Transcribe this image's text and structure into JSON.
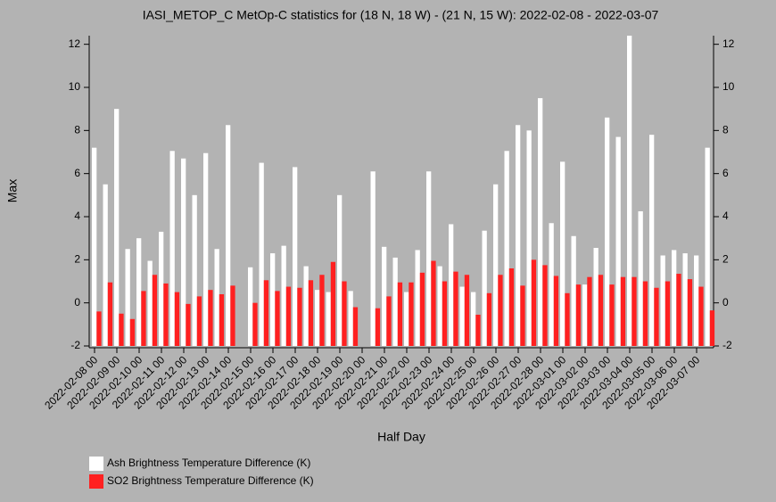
{
  "chart_data": {
    "type": "bar",
    "title": "IASI_METOP_C MetOp-C statistics for (18 N, 18 W) - (21 N, 15 W): 2022-02-08 - 2022-03-07",
    "x_label": "Half Day",
    "y_label": "Max",
    "categories": [
      "2022-02-08 00",
      null,
      "2022-02-09 00",
      null,
      "2022-02-10 00",
      null,
      "2022-02-11 00",
      null,
      "2022-02-12 00",
      null,
      "2022-02-13 00",
      null,
      "2022-02-14 00",
      null,
      "2022-02-15 00",
      null,
      "2022-02-16 00",
      null,
      "2022-02-17 00",
      null,
      "2022-02-18 00",
      null,
      "2022-02-19 00",
      null,
      "2022-02-20 00",
      null,
      "2022-02-21 00",
      null,
      "2022-02-22 00",
      null,
      "2022-02-23 00",
      null,
      "2022-02-24 00",
      null,
      "2022-02-25 00",
      null,
      "2022-02-26 00",
      null,
      "2022-02-27 00",
      null,
      "2022-02-28 00",
      null,
      "2022-03-01 00",
      null,
      "2022-03-02 00",
      null,
      "2022-03-03 00",
      null,
      "2022-03-04 00",
      null,
      "2022-03-05 00",
      null,
      "2022-03-06 00",
      null,
      "2022-03-07 00",
      null
    ],
    "series": [
      {
        "name": "Ash Brightness Temperature Difference (K)",
        "color": "#ffffff",
        "values": [
          7.2,
          5.5,
          9.0,
          2.5,
          3.0,
          1.95,
          3.3,
          7.05,
          6.7,
          5.0,
          6.95,
          2.5,
          8.25,
          null,
          1.65,
          6.5,
          2.3,
          2.65,
          6.3,
          1.7,
          0.6,
          0.5,
          5.0,
          0.55,
          null,
          6.1,
          2.6,
          2.1,
          0.5,
          2.45,
          6.1,
          1.7,
          3.65,
          0.75,
          0.5,
          3.35,
          5.5,
          7.05,
          8.25,
          8.0,
          9.5,
          3.7,
          6.55,
          3.1,
          0.85,
          2.55,
          8.6,
          7.7,
          12.4,
          4.25,
          7.8,
          2.2,
          2.45,
          2.3,
          2.2,
          7.2
        ]
      },
      {
        "name": "SO2 Brightness Temperature Difference (K)",
        "color": "#ff2020",
        "values": [
          -0.4,
          0.95,
          -0.5,
          -0.75,
          0.55,
          1.3,
          0.9,
          0.5,
          -0.05,
          0.3,
          0.6,
          0.4,
          0.8,
          null,
          0.0,
          1.05,
          0.55,
          0.75,
          0.7,
          1.05,
          1.3,
          1.9,
          1.0,
          -0.2,
          null,
          -0.25,
          0.3,
          0.95,
          0.95,
          1.4,
          1.95,
          1.0,
          1.45,
          1.3,
          -0.55,
          0.45,
          1.3,
          1.6,
          0.8,
          2.0,
          1.75,
          1.25,
          0.45,
          0.85,
          1.2,
          1.3,
          0.85,
          1.2,
          1.2,
          1.0,
          0.7,
          1.0,
          1.35,
          1.1,
          0.75,
          -0.35
        ]
      }
    ],
    "ylim": [
      -2,
      12.4
    ],
    "yticks": [
      -2,
      0,
      2,
      4,
      6,
      8,
      10,
      12
    ],
    "y2lim": [
      -2,
      12.4
    ],
    "y2ticks": [
      -2,
      0,
      2,
      4,
      6,
      8,
      10,
      12
    ]
  }
}
